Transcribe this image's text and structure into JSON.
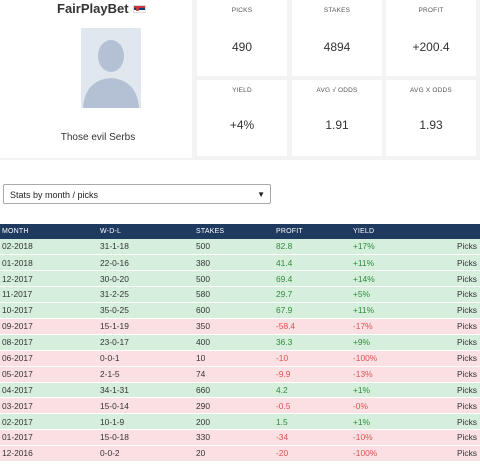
{
  "profile": {
    "username": "FairPlayBet",
    "tagline": "Those evil Serbs"
  },
  "stats": {
    "picks": {
      "label": "PICKS",
      "value": "490"
    },
    "stakes": {
      "label": "STAKES",
      "value": "4894"
    },
    "profit": {
      "label": "PROFIT",
      "value": "+200.4"
    },
    "yield": {
      "label": "YIELD",
      "value": "+4%"
    },
    "avg_v_odds": {
      "label": "AVG √ ODDS",
      "value": "1.91"
    },
    "avg_x_odds": {
      "label": "AVG X ODDS",
      "value": "1.93"
    }
  },
  "filter": {
    "selected": "Stats by month / picks"
  },
  "table": {
    "headers": [
      "MONTH",
      "W-D-L",
      "STAKES",
      "PROFIT",
      "YIELD"
    ],
    "rows": [
      {
        "month": "02-2018",
        "wdl": "31-1-18",
        "stakes": "500",
        "profit": "82.8",
        "yield": "+17%",
        "link": "Picks",
        "status": "pos"
      },
      {
        "month": "01-2018",
        "wdl": "22-0-16",
        "stakes": "380",
        "profit": "41.4",
        "yield": "+11%",
        "link": "Picks",
        "status": "pos"
      },
      {
        "month": "12-2017",
        "wdl": "30-0-20",
        "stakes": "500",
        "profit": "69.4",
        "yield": "+14%",
        "link": "Picks",
        "status": "pos"
      },
      {
        "month": "11-2017",
        "wdl": "31-2-25",
        "stakes": "580",
        "profit": "29.7",
        "yield": "+5%",
        "link": "Picks",
        "status": "pos"
      },
      {
        "month": "10-2017",
        "wdl": "35-0-25",
        "stakes": "600",
        "profit": "67.9",
        "yield": "+11%",
        "link": "Picks",
        "status": "pos"
      },
      {
        "month": "09-2017",
        "wdl": "15-1-19",
        "stakes": "350",
        "profit": "-58.4",
        "yield": "-17%",
        "link": "Picks",
        "status": "neg"
      },
      {
        "month": "08-2017",
        "wdl": "23-0-17",
        "stakes": "400",
        "profit": "36.3",
        "yield": "+9%",
        "link": "Picks",
        "status": "pos"
      },
      {
        "month": "06-2017",
        "wdl": "0-0-1",
        "stakes": "10",
        "profit": "-10",
        "yield": "-100%",
        "link": "Picks",
        "status": "neg"
      },
      {
        "month": "05-2017",
        "wdl": "2-1-5",
        "stakes": "74",
        "profit": "-9.9",
        "yield": "-13%",
        "link": "Picks",
        "status": "neg"
      },
      {
        "month": "04-2017",
        "wdl": "34-1-31",
        "stakes": "660",
        "profit": "4.2",
        "yield": "+1%",
        "link": "Picks",
        "status": "pos"
      },
      {
        "month": "03-2017",
        "wdl": "15-0-14",
        "stakes": "290",
        "profit": "-0.5",
        "yield": "-0%",
        "link": "Picks",
        "status": "neg"
      },
      {
        "month": "02-2017",
        "wdl": "10-1-9",
        "stakes": "200",
        "profit": "1.5",
        "yield": "+1%",
        "link": "Picks",
        "status": "pos"
      },
      {
        "month": "01-2017",
        "wdl": "15-0-18",
        "stakes": "330",
        "profit": "-34",
        "yield": "-10%",
        "link": "Picks",
        "status": "neg"
      },
      {
        "month": "12-2016",
        "wdl": "0-0-2",
        "stakes": "20",
        "profit": "-20",
        "yield": "-100%",
        "link": "Picks",
        "status": "neg"
      }
    ]
  },
  "colors": {
    "header_bg": "#1f3a5f",
    "positive_row": "#d6eedc",
    "negative_row": "#fbe0e3",
    "positive_text": "#2e8b3a",
    "negative_text": "#d9534f"
  },
  "icons": {
    "flag": "serbia-flag-icon",
    "avatar": "default-avatar-icon",
    "dropdown": "chevron-down-icon"
  }
}
